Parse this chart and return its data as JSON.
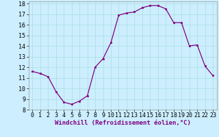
{
  "x": [
    0,
    1,
    2,
    3,
    4,
    5,
    6,
    7,
    8,
    9,
    10,
    11,
    12,
    13,
    14,
    15,
    16,
    17,
    18,
    19,
    20,
    21,
    22,
    23
  ],
  "y": [
    11.6,
    11.4,
    11.1,
    9.7,
    8.7,
    8.5,
    8.8,
    9.3,
    12.0,
    12.8,
    14.3,
    16.9,
    17.1,
    17.2,
    17.6,
    17.8,
    17.8,
    17.5,
    16.2,
    16.2,
    14.0,
    14.1,
    12.1,
    11.2
  ],
  "line_color": "#800080",
  "marker": "s",
  "marker_size": 2.0,
  "bg_color": "#cceeff",
  "grid_color": "#aadddd",
  "xlabel": "Windchill (Refroidissement éolien,°C)",
  "xlabel_fontsize": 6.5,
  "tick_fontsize": 6,
  "xlim": [
    -0.5,
    23.5
  ],
  "ylim": [
    8,
    18.2
  ],
  "yticks": [
    8,
    9,
    10,
    11,
    12,
    13,
    14,
    15,
    16,
    17,
    18
  ],
  "xticks": [
    0,
    1,
    2,
    3,
    4,
    5,
    6,
    7,
    8,
    9,
    10,
    11,
    12,
    13,
    14,
    15,
    16,
    17,
    18,
    19,
    20,
    21,
    22,
    23
  ]
}
